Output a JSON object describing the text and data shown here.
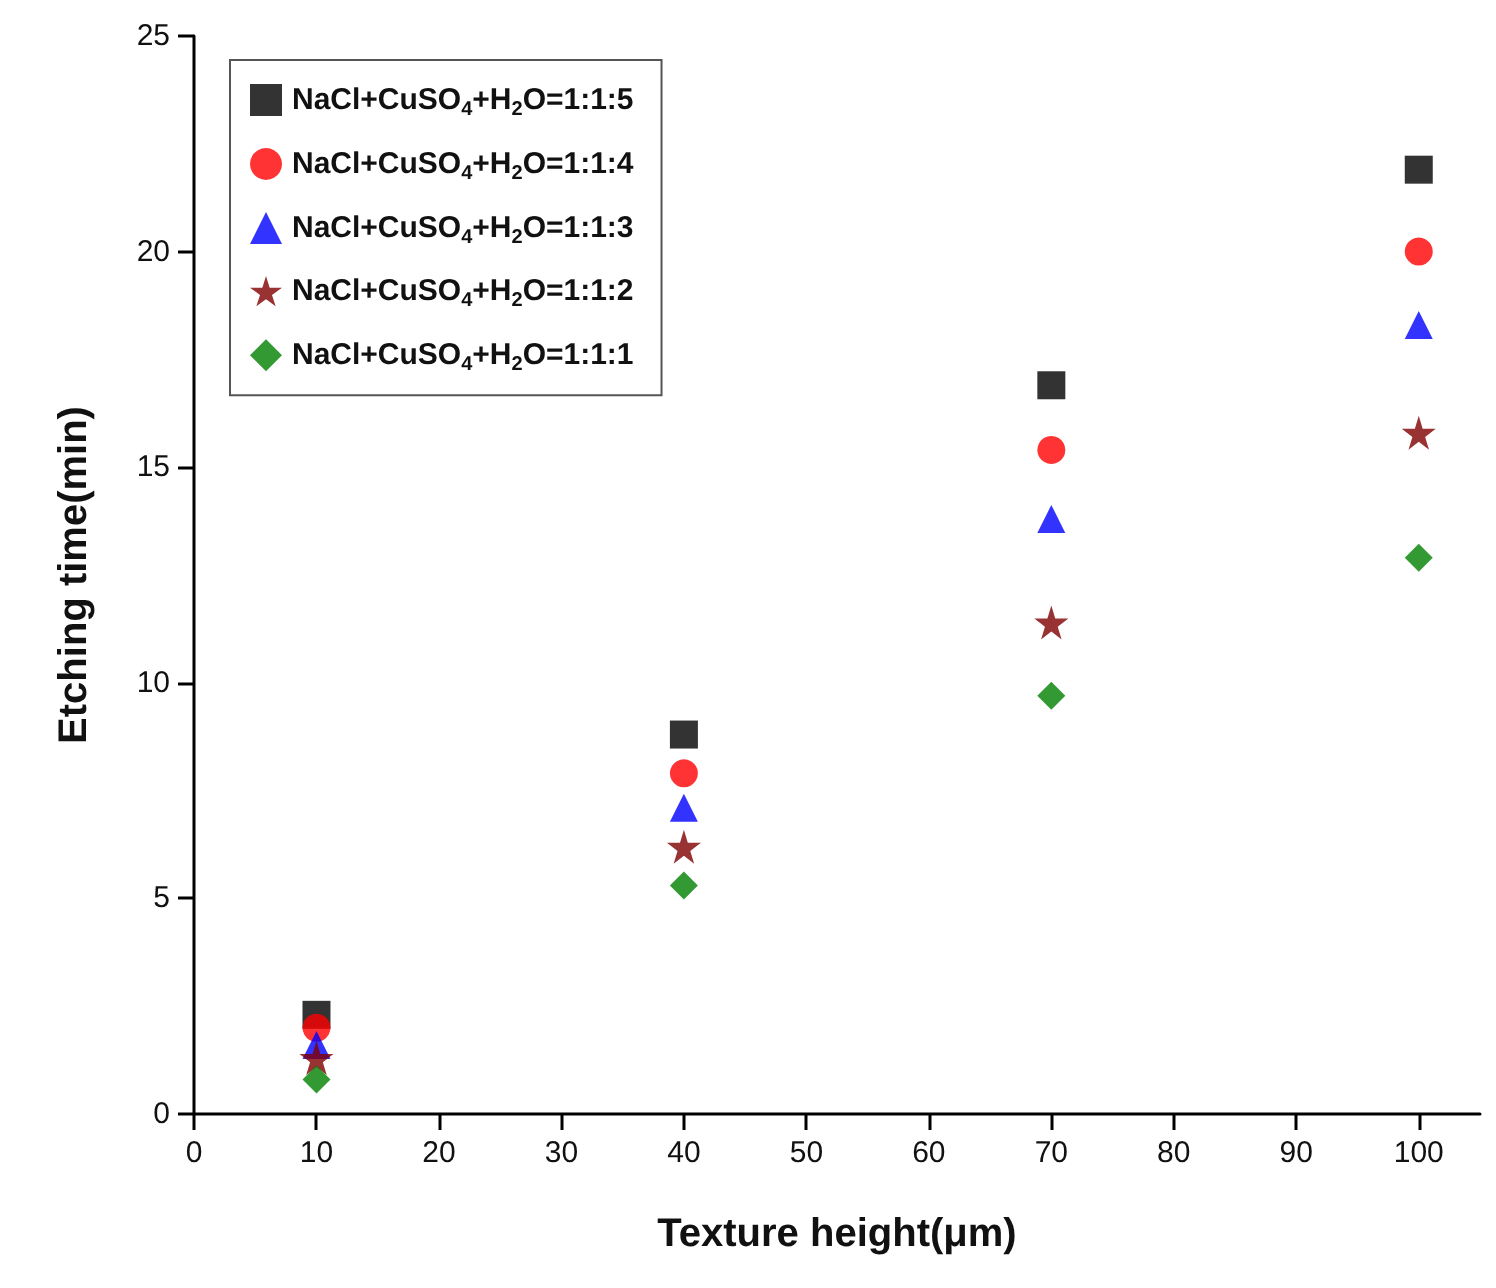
{
  "chart_data": {
    "type": "scatter",
    "xlabel": "Texture height(μm)",
    "ylabel": "Etching time(min)",
    "x": [
      10,
      40,
      70,
      100
    ],
    "xlim": [
      0,
      105
    ],
    "xticks": [
      0,
      10,
      20,
      30,
      40,
      50,
      60,
      70,
      80,
      90,
      100
    ],
    "ylim": [
      0,
      25
    ],
    "yticks": [
      0,
      5,
      10,
      15,
      20,
      25
    ],
    "grid": false,
    "legend": "top left",
    "series": [
      {
        "name": "NaCl+CuSO$_{4}$+H$_{2}$O=1:1:5",
        "color": "#000000",
        "marker": "square",
        "values": [
          2.3,
          8.8,
          16.9,
          21.9
        ]
      },
      {
        "name": "NaCl+CuSO$_{4}$+H$_{2}$O=1:1:4",
        "color": "#ff0000",
        "marker": "circle",
        "values": [
          2.0,
          7.9,
          15.4,
          20.0
        ]
      },
      {
        "name": "NaCl+CuSO$_{4}$+H$_{2}$O=1:1:3",
        "color": "#0000ff",
        "marker": "triangle",
        "values": [
          1.6,
          7.1,
          13.8,
          18.3
        ]
      },
      {
        "name": "NaCl+CuSO$_{4}$+H$_{2}$O=1:1:2",
        "color": "#800000",
        "marker": "star",
        "values": [
          1.3,
          6.2,
          11.4,
          15.8
        ]
      },
      {
        "name": "NaCl+CuSO$_{4}$+H$_{2}$O=1:1:1",
        "color": "#008000",
        "marker": "diamond",
        "values": [
          0.8,
          5.3,
          9.7,
          12.9
        ]
      }
    ]
  }
}
